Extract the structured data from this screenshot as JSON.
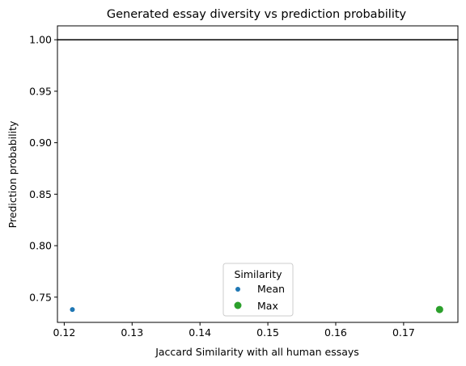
{
  "chart_data": {
    "type": "scatter",
    "title": "Generated essay diversity vs prediction probability",
    "xlabel": "Jaccard Similarity with all human essays",
    "ylabel": "Prediction probability",
    "xlim": [
      0.119,
      0.178
    ],
    "ylim": [
      0.7255,
      1.0135
    ],
    "xticks": [
      0.12,
      0.13,
      0.14,
      0.15,
      0.16,
      0.17
    ],
    "xtick_labels": [
      "0.12",
      "0.13",
      "0.14",
      "0.15",
      "0.16",
      "0.17"
    ],
    "yticks": [
      0.75,
      0.8,
      0.85,
      0.9,
      0.95,
      1.0
    ],
    "ytick_labels": [
      "0.75",
      "0.80",
      "0.85",
      "0.90",
      "0.95",
      "1.00"
    ],
    "grid": false,
    "reference_line": {
      "y": 1.0,
      "color": "#000000"
    },
    "legend": {
      "title": "Similarity",
      "placement": "lower-center"
    },
    "series": [
      {
        "name": "Mean",
        "color": "#1f77b4",
        "marker": "small-circle",
        "points": [
          {
            "x": 0.1212,
            "y": 0.738
          }
        ]
      },
      {
        "name": "Max",
        "color": "#2ca02c",
        "marker": "large-circle",
        "points": [
          {
            "x": 0.1753,
            "y": 0.738
          }
        ]
      }
    ]
  }
}
